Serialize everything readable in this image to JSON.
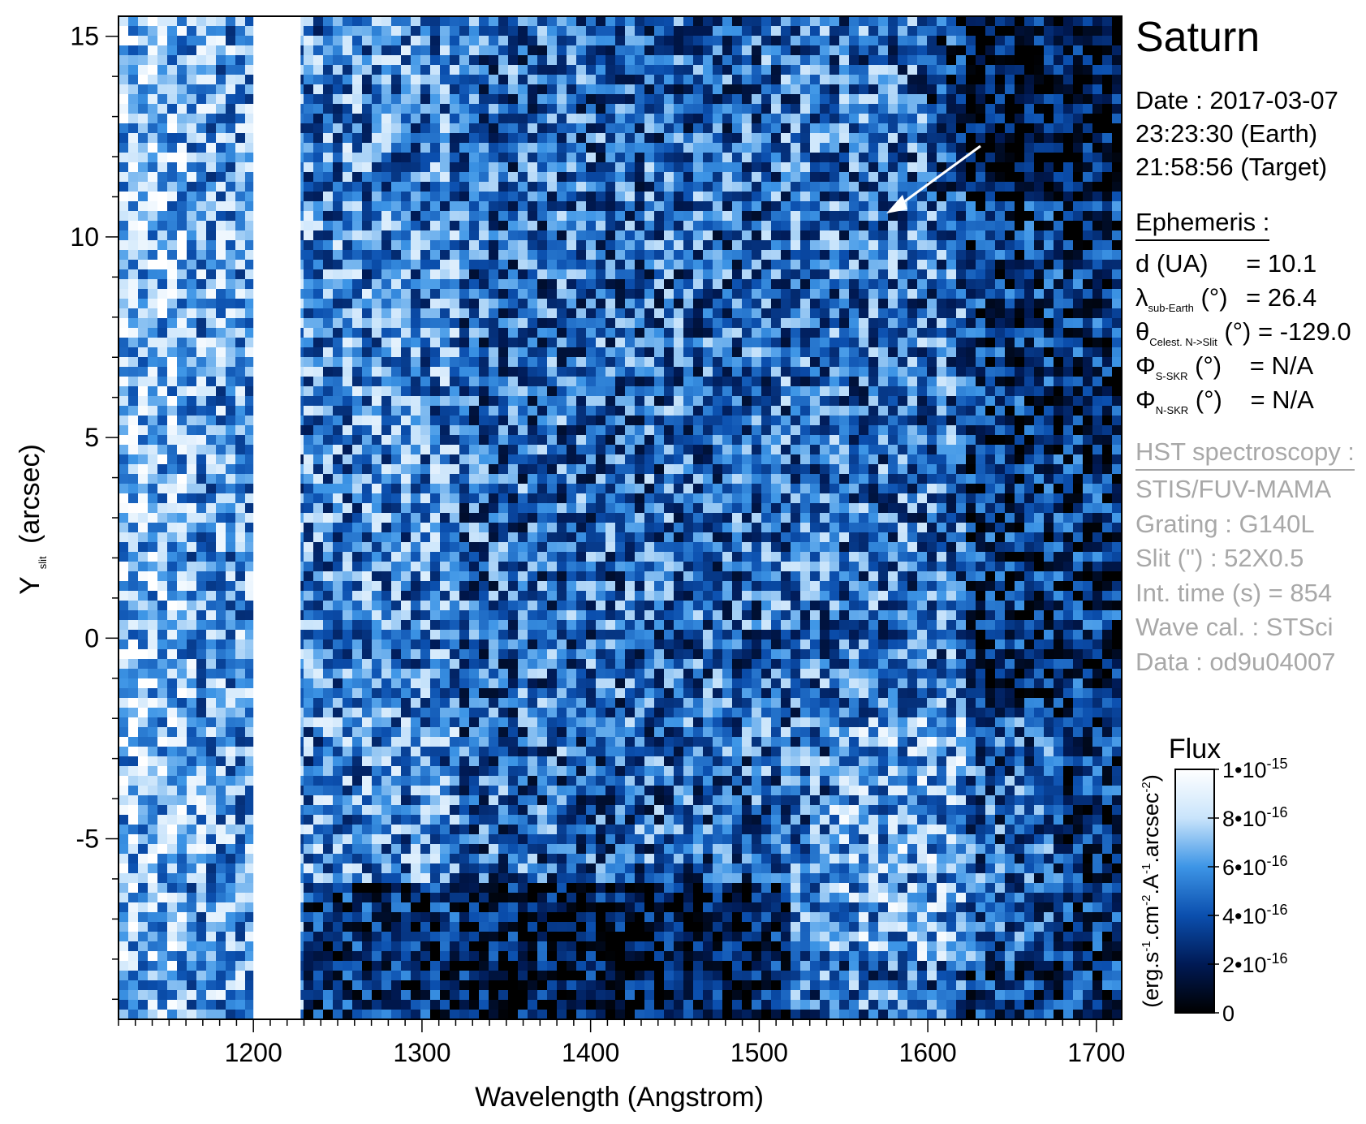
{
  "chart_data": {
    "type": "heatmap",
    "title": "Saturn",
    "xlabel": "Wavelength (Angstrom)",
    "ylabel_main": "Y",
    "ylabel_sub": "slit",
    "ylabel_unit": "(arcsec)",
    "xlim": [
      1120,
      1715
    ],
    "ylim": [
      -9.5,
      15.5
    ],
    "x_ticks": [
      1200,
      1300,
      1400,
      1500,
      1600,
      1700
    ],
    "y_ticks": [
      15,
      10,
      5,
      0,
      -5
    ],
    "x_tick_labels": [
      "1200",
      "1300",
      "1400",
      "1500",
      "1600",
      "1700"
    ],
    "y_tick_labels": [
      "15",
      "10",
      "5",
      "0",
      "-5"
    ],
    "x_minor_step": 10,
    "y_minor_step": 1,
    "lyman_alpha_band": [
      1200,
      1228
    ],
    "grid": false,
    "colorbar": {
      "title": "Flux",
      "label_parts": [
        "(erg.s",
        "-1",
        ".cm",
        "-2",
        ".A",
        "-1",
        ".arcsec",
        "-2",
        ")"
      ],
      "range": [
        0,
        1e-15
      ],
      "ticks": [
        {
          "value": 1e-15,
          "mant": "1•10",
          "exp": "-15"
        },
        {
          "value": 8e-16,
          "mant": "8•10",
          "exp": "-16"
        },
        {
          "value": 6e-16,
          "mant": "6•10",
          "exp": "-16"
        },
        {
          "value": 4e-16,
          "mant": "4•10",
          "exp": "-16"
        },
        {
          "value": 2e-16,
          "mant": "2•10",
          "exp": "-16"
        },
        {
          "value": 0,
          "mant": "0",
          "exp": ""
        }
      ],
      "colormap": [
        "#000000",
        "#001a55",
        "#0b4fae",
        "#3d95e6",
        "#c9e4fb",
        "#ffffff"
      ]
    }
  },
  "info": {
    "date": {
      "label": "Date : 2017-03-07",
      "earth": "23:23:30 (Earth)",
      "target": "21:58:56 (Target)"
    },
    "ephemeris": {
      "header": "Ephemeris :",
      "rows": [
        {
          "sym": "d",
          "sub": "",
          "unit": " (UA)",
          "value": "= 10.1"
        },
        {
          "sym": "λ",
          "sub": "sub-Earth",
          "unit": " (°)",
          "value": "= 26.4"
        },
        {
          "sym": "θ",
          "sub": "Celest. N->Slit",
          "unit": " (°)",
          "value": "= -129.0"
        },
        {
          "sym": "Φ",
          "sub": "S-SKR",
          "unit": " (°)",
          "value": "= N/A"
        },
        {
          "sym": "Φ",
          "sub": "N-SKR",
          "unit": " (°)",
          "value": "= N/A"
        }
      ]
    },
    "hst": {
      "header": "HST spectroscopy :",
      "lines": [
        "STIS/FUV-MAMA",
        "Grating : G140L",
        "Slit (\") : 52X0.5",
        "Int. time (s) = 854",
        "Wave cal. : STSci",
        "Data : od9u04007"
      ]
    }
  },
  "colors": {
    "label_gray": "#a8a8a8",
    "text": "#000000"
  }
}
